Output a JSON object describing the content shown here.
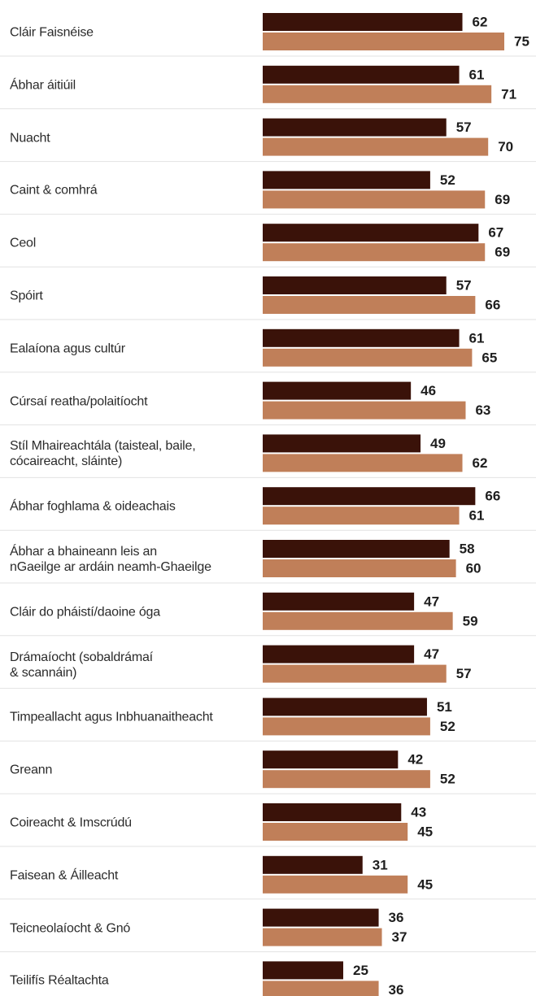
{
  "chart_data": {
    "type": "bar",
    "orientation": "horizontal",
    "categories": [
      "Cláir Faisnéise",
      "Ábhar áitiúil",
      "Nuacht",
      "Caint & comhrá",
      "Ceol",
      "Spóirt",
      "Ealaíona agus cultúr",
      "Cúrsaí reatha/polaitíocht",
      "Stíl Mhaireachtála (taisteal, baile,\ncócaireacht, sláinte)",
      "Ábhar foghlama & oideachais",
      "Ábhar a bhaineann leis an\nnGaeilge ar ardáin neamh-Ghaeilge",
      "Cláir do pháistí/daoine óga",
      "Drámaíocht (sobaldrámaí\n& scannáin)",
      "Timpeallacht agus Inbhuanaitheacht",
      "Greann",
      "Coireacht & Imscrúdú",
      "Faisean & Áilleacht",
      "Teicneolaíocht & Gnó",
      "Teilifís Réaltachta"
    ],
    "series": [
      {
        "color": "#3a1209",
        "values": [
          62,
          61,
          57,
          52,
          67,
          57,
          61,
          46,
          49,
          66,
          58,
          47,
          47,
          51,
          42,
          43,
          31,
          36,
          25
        ]
      },
      {
        "color": "#c07f59",
        "values": [
          75,
          71,
          70,
          69,
          69,
          66,
          65,
          63,
          62,
          61,
          60,
          59,
          57,
          52,
          52,
          45,
          45,
          37,
          36
        ]
      }
    ],
    "xlim": [
      0,
      100
    ]
  }
}
